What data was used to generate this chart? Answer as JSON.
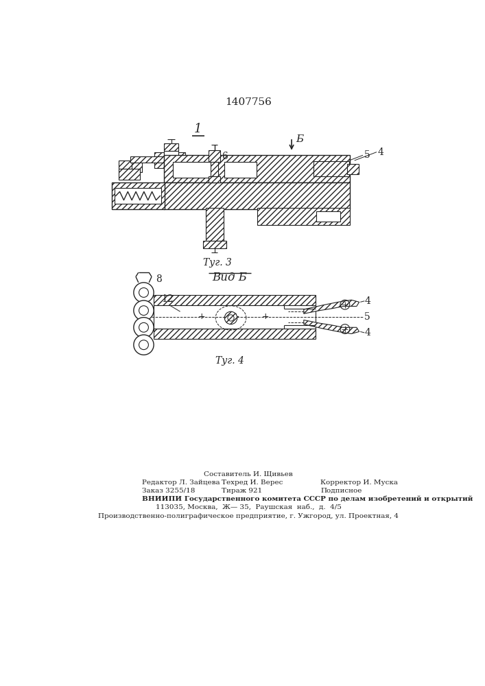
{
  "patent_number": "1407756",
  "fig3_caption": "Τуг. 3",
  "fig4_header": "Вид Б",
  "fig4_caption": "Τуг. 4",
  "arrow_label_b": "Б",
  "label_1": "1",
  "label_4": "4",
  "label_5": "5",
  "label_6": "6",
  "label_8": "8",
  "label_12": "12",
  "bg_color": "#ffffff",
  "line_color": "#222222",
  "footer_line1": "Составитель И. Щивьев",
  "footer_line2_left": "Редактор Л. Зайцева",
  "footer_line2_mid": "Техред И. Верес",
  "footer_line2_right": "Корректор И. Муска",
  "footer_line3_left": "Заказ 3255/18",
  "footer_line3_mid": "Тираж 921",
  "footer_line3_right": "Подписное",
  "footer_line4": "ВНИИПИ Государственного комитета СССР по делам изобретений и открытий",
  "footer_line5": "113035, Москва,  Ж— 35,  Раушская  наб.,  д.  4/5",
  "footer_line6": "Производственно-полиграфическое предприятие, г. Ужгород, ул. Проектная, 4"
}
